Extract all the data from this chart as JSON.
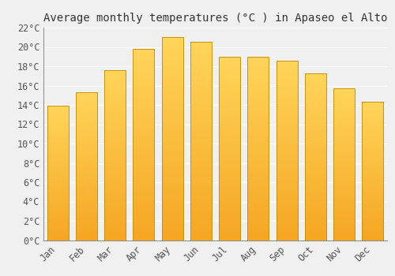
{
  "title": "Average monthly temperatures (°C ) in Apaseo el Alto",
  "months": [
    "Jan",
    "Feb",
    "Mar",
    "Apr",
    "May",
    "Jun",
    "Jul",
    "Aug",
    "Sep",
    "Oct",
    "Nov",
    "Dec"
  ],
  "temperatures": [
    13.9,
    15.3,
    17.6,
    19.8,
    21.0,
    20.5,
    19.0,
    19.0,
    18.6,
    17.3,
    15.7,
    14.3
  ],
  "bar_color_bottom": "#F5A623",
  "bar_color_top": "#FFD55A",
  "bar_edge_color": "#C8920A",
  "ylim": [
    0,
    22
  ],
  "ytick_step": 2,
  "background_color": "#f0f0f0",
  "grid_color": "#ffffff",
  "title_fontsize": 10,
  "tick_fontsize": 8.5,
  "font_family": "monospace"
}
